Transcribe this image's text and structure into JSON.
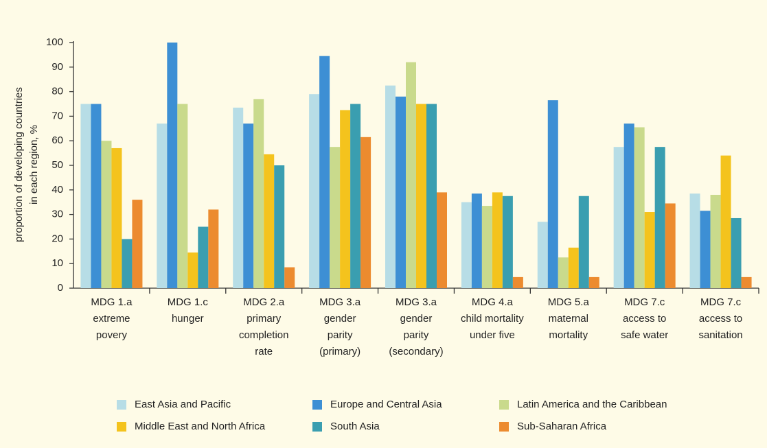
{
  "chart_data": {
    "type": "bar",
    "ylabel": [
      "proportion of developing countries",
      "in each region, %"
    ],
    "categories": [
      [
        "MDG 1.a",
        "extreme",
        "povery"
      ],
      [
        "MDG 1.c",
        "hunger"
      ],
      [
        "MDG 2.a",
        "primary",
        "completion",
        "rate"
      ],
      [
        "MDG 3.a",
        "gender",
        "parity",
        "(primary)"
      ],
      [
        "MDG 3.a",
        "gender",
        "parity",
        "(secondary)"
      ],
      [
        "MDG 4.a",
        "child mortality",
        "under five"
      ],
      [
        "MDG 5.a",
        "maternal",
        "mortality"
      ],
      [
        "MDG 7.c",
        "access to",
        "safe water"
      ],
      [
        "MDG 7.c",
        "access to",
        "sanitation"
      ]
    ],
    "series": [
      {
        "name": "East Asia and Pacific",
        "color": "#b7dde6",
        "values": [
          75,
          67,
          73.5,
          79,
          82.5,
          35,
          27,
          57.5,
          38.5
        ]
      },
      {
        "name": "Europe and Central Asia",
        "color": "#3d8fd4",
        "values": [
          75,
          100,
          67,
          94.5,
          78,
          38.5,
          76.5,
          67,
          31.5
        ]
      },
      {
        "name": "Latin America and the Caribbean",
        "color": "#c9da8c",
        "values": [
          60,
          75,
          77,
          57.5,
          92,
          33.5,
          12.5,
          65.5,
          38
        ]
      },
      {
        "name": "Middle East and North Africa",
        "color": "#f4c31d",
        "values": [
          57,
          14.5,
          54.5,
          72.5,
          75,
          39,
          16.5,
          31,
          54
        ]
      },
      {
        "name": "South Asia",
        "color": "#3a9eb0",
        "values": [
          20,
          25,
          50,
          75,
          75,
          37.5,
          37.5,
          57.5,
          28.5
        ]
      },
      {
        "name": "Sub-Saharan Africa",
        "color": "#ec8b2f",
        "values": [
          36,
          32,
          8.5,
          61.5,
          39,
          4.5,
          4.5,
          34.5,
          4.5
        ]
      }
    ],
    "ylim": [
      0,
      100
    ],
    "yticks": [
      0,
      10,
      20,
      30,
      40,
      50,
      60,
      70,
      80,
      90,
      100
    ],
    "grid": false
  }
}
